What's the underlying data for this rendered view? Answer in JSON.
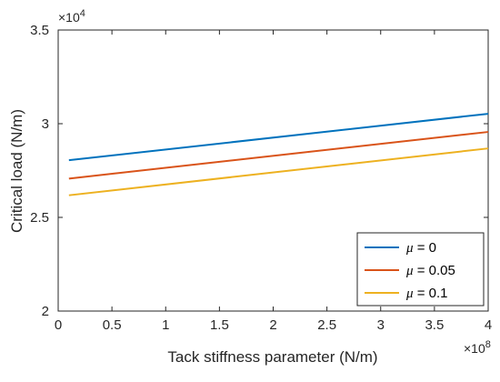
{
  "chart_data": {
    "type": "line",
    "title": "",
    "xlabel": "Tack stiffness parameter (N/m)",
    "ylabel": "Critical load (N/m)",
    "x_multiplier": "×10",
    "x_multiplier_exp": "8",
    "y_multiplier": "×10",
    "y_multiplier_exp": "4",
    "xlim": [
      0,
      4
    ],
    "ylim": [
      2,
      3.5
    ],
    "x_ticks": [
      "0",
      "0.5",
      "1",
      "1.5",
      "2",
      "2.5",
      "3",
      "3.5",
      "4"
    ],
    "y_ticks": [
      "2",
      "2.5",
      "3",
      "3.5"
    ],
    "x_tick_values": [
      0,
      0.5,
      1,
      1.5,
      2,
      2.5,
      3,
      3.5,
      4
    ],
    "y_tick_values": [
      2,
      2.5,
      3,
      3.5
    ],
    "grid": false,
    "legend_position": "bottom-right",
    "series": [
      {
        "name_symbol": "μ",
        "name_rest": " = 0",
        "color": "#0072BD",
        "x": [
          0.1,
          4
        ],
        "y": [
          2.805,
          3.053
        ]
      },
      {
        "name_symbol": "μ",
        "name_rest": " = 0.05",
        "color": "#D95319",
        "x": [
          0.1,
          4
        ],
        "y": [
          2.707,
          2.956
        ]
      },
      {
        "name_symbol": "μ",
        "name_rest": " = 0.1",
        "color": "#EDB120",
        "x": [
          0.1,
          4
        ],
        "y": [
          2.618,
          2.868
        ]
      }
    ]
  }
}
